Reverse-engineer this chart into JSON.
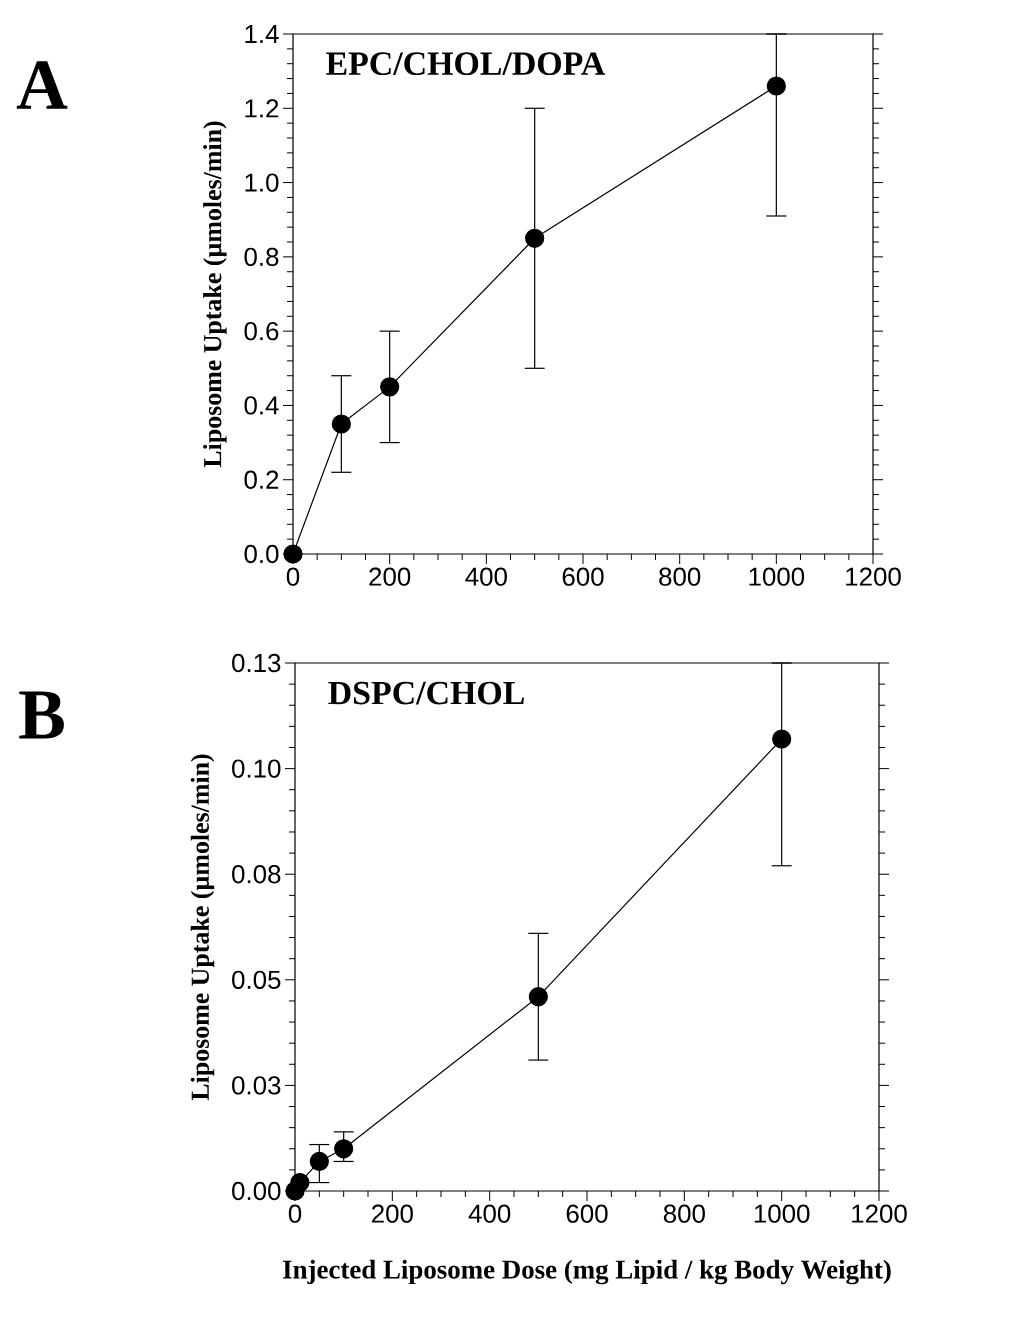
{
  "chart_data": [
    {
      "type": "line",
      "title": "EPC/CHOL/DOPA",
      "ylabel": "Liposome Uptake (µmoles/min)",
      "annotations": [
        "A"
      ],
      "marker": "circle",
      "line_style": "solid",
      "grid": false,
      "series": [
        {
          "color": "#000000",
          "x": [
            0,
            100,
            200,
            500,
            1000
          ],
          "values": [
            0,
            0.35,
            0.45,
            0.85,
            1.26
          ],
          "errors": [
            null,
            [
              0.22,
              0.48
            ],
            [
              0.3,
              0.6
            ],
            [
              0.5,
              1.2
            ],
            [
              0.91,
              1.4
            ]
          ]
        }
      ],
      "xlim": [
        0,
        1200
      ],
      "xticks": [
        0,
        200,
        400,
        600,
        800,
        1000,
        1200
      ],
      "ylim": [
        0,
        1.4
      ],
      "yticks": [
        {
          "value": 0,
          "label": "0.0"
        },
        {
          "value": 0.2,
          "label": "0.2"
        },
        {
          "value": 0.4,
          "label": "0.4"
        },
        {
          "value": 0.6,
          "label": "0.6"
        },
        {
          "value": 0.8,
          "label": "0.8"
        },
        {
          "value": 1.0,
          "label": "1.0"
        },
        {
          "value": 1.2,
          "label": "1.2"
        },
        {
          "value": 1.4,
          "label": "1.4"
        }
      ]
    },
    {
      "type": "line",
      "title": "DSPC/CHOL",
      "ylabel": "Liposome Uptake (µmoles/min)",
      "xlabel": "Injected Liposome Dose (mg Lipid / kg Body Weight)",
      "annotations": [
        "B"
      ],
      "marker": "circle",
      "line_style": "solid",
      "grid": false,
      "series": [
        {
          "color": "#000000",
          "x": [
            0,
            10,
            50,
            100,
            500,
            1000
          ],
          "values": [
            0,
            0.002,
            0.007,
            0.01,
            0.046,
            0.107
          ],
          "errors": [
            null,
            null,
            [
              0.002,
              0.011
            ],
            [
              0.007,
              0.014
            ],
            [
              0.031,
              0.061
            ],
            [
              0.077,
              0.125
            ]
          ]
        }
      ],
      "xlim": [
        0,
        1200
      ],
      "xticks": [
        0,
        200,
        400,
        600,
        800,
        1000,
        1200
      ],
      "ylim": [
        0,
        0.125
      ],
      "yticks": [
        {
          "value": 0,
          "label": "0.00"
        },
        {
          "value": 0.025,
          "label": "0.03"
        },
        {
          "value": 0.05,
          "label": "0.05"
        },
        {
          "value": 0.075,
          "label": "0.08"
        },
        {
          "value": 0.1,
          "label": "0.10"
        },
        {
          "value": 0.125,
          "label": "0.13"
        }
      ]
    }
  ]
}
